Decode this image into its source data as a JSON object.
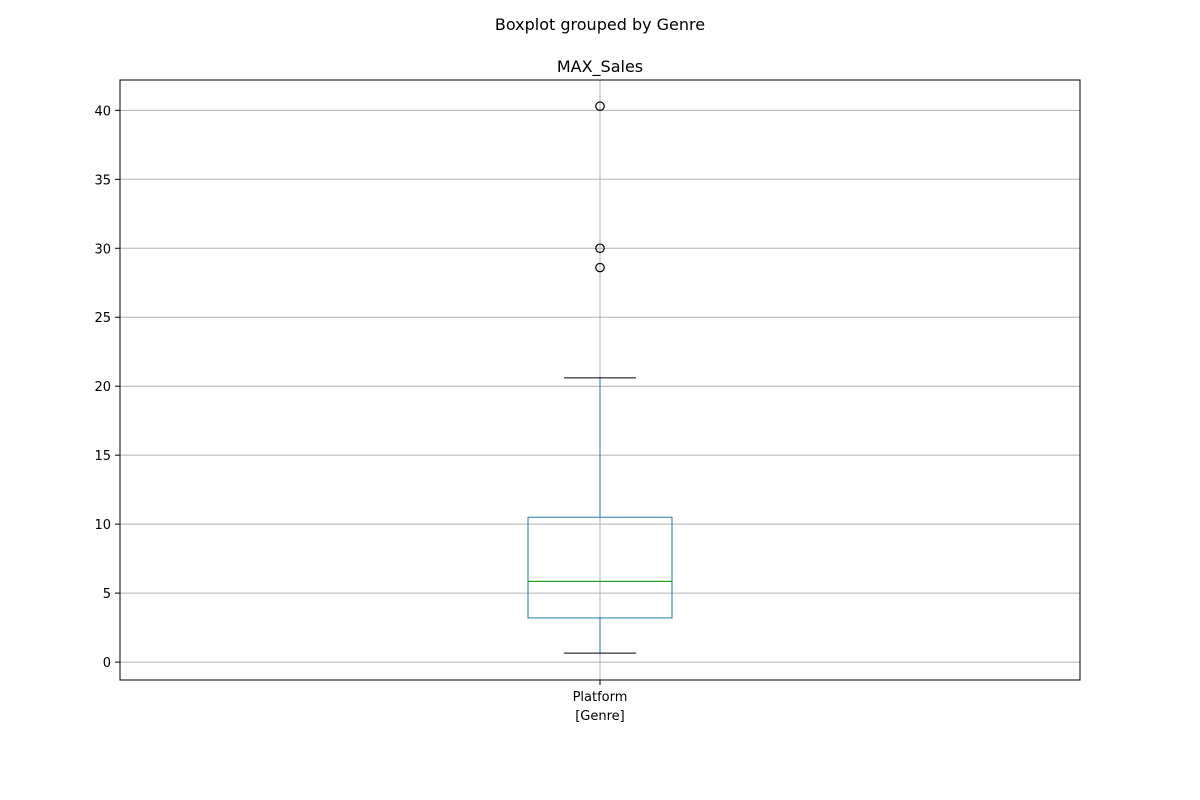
{
  "chart_data": {
    "type": "boxplot",
    "suptitle": "Boxplot grouped by Genre",
    "title": "MAX_Sales",
    "categories": [
      "Platform",
      "[Genre]"
    ],
    "category_label_line1": "Platform",
    "category_label_line2": "[Genre]",
    "ylim": [
      -1.3,
      42.2
    ],
    "yticks": [
      0,
      5,
      10,
      15,
      20,
      25,
      30,
      35,
      40
    ],
    "grid": true,
    "box": {
      "whisker_low": 0.65,
      "q1": 3.2,
      "median": 5.85,
      "q3": 10.5,
      "whisker_high": 20.6,
      "outliers": [
        28.6,
        30.0,
        40.3
      ]
    },
    "colors": {
      "box": "#1f77b4",
      "median": "#2ca02c",
      "caps": "#000000",
      "grid": "#b0b0b0",
      "outlier_edge": "#000000"
    }
  }
}
